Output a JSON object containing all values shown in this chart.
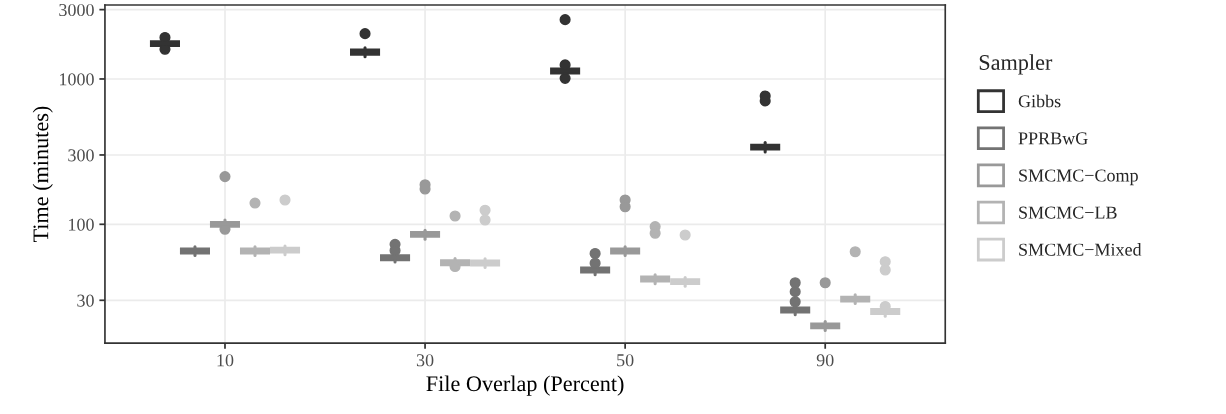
{
  "chart_data": {
    "type": "box",
    "xlabel": "File Overlap (Percent)",
    "ylabel": "Time (minutes)",
    "legend_title": "Sampler",
    "categories": [
      "10",
      "30",
      "50",
      "90"
    ],
    "log": "y",
    "ylim": [
      15.2,
      3230
    ],
    "yticks": [
      30,
      100,
      300,
      1000,
      3000
    ],
    "grid": true,
    "legend": "right",
    "series": [
      {
        "name": "Gibbs",
        "color": "#333333",
        "boxes": [
          {
            "low": 1630,
            "q1": 1700,
            "median": 1750,
            "q3": 1800,
            "high": 1870,
            "outliers": [
              1930,
              1600
            ]
          },
          {
            "low": 1420,
            "q1": 1480,
            "median": 1530,
            "q3": 1580,
            "high": 1640,
            "outliers": [
              2050
            ]
          },
          {
            "low": 1060,
            "q1": 1100,
            "median": 1135,
            "q3": 1170,
            "high": 1210,
            "outliers": [
              1250,
              1010,
              2560
            ]
          },
          {
            "low": 315,
            "q1": 330,
            "median": 340,
            "q3": 350,
            "high": 365,
            "outliers": [
              764,
              706
            ]
          }
        ]
      },
      {
        "name": "PPRBwG",
        "color": "#737373",
        "boxes": [
          {
            "low": 61,
            "q1": 63.5,
            "median": 65.5,
            "q3": 67.5,
            "high": 70
          },
          {
            "low": 55,
            "q1": 57,
            "median": 58.9,
            "q3": 60.7,
            "high": 63,
            "outliers": [
              72.8,
              66
            ]
          },
          {
            "low": 45,
            "q1": 47,
            "median": 48.5,
            "q3": 50,
            "high": 52,
            "outliers": [
              63,
              54
            ]
          },
          {
            "low": 23.9,
            "q1": 24.9,
            "median": 25.7,
            "q3": 26.5,
            "high": 27.5,
            "outliers": [
              39.6,
              29.3,
              34.4
            ]
          }
        ]
      },
      {
        "name": "SMCMC−Comp",
        "color": "#999999",
        "boxes": [
          {
            "low": 93,
            "q1": 97,
            "median": 100,
            "q3": 103,
            "high": 107,
            "outliers": [
              213,
              92.5
            ]
          },
          {
            "low": 79,
            "q1": 82.7,
            "median": 85.3,
            "q3": 87.9,
            "high": 91,
            "outliers": [
              187,
              175
            ]
          },
          {
            "low": 61,
            "q1": 63.5,
            "median": 65.5,
            "q3": 67.5,
            "high": 70,
            "outliers": [
              147,
              132
            ]
          },
          {
            "low": 18.6,
            "q1": 19.4,
            "median": 20,
            "q3": 20.6,
            "high": 21.4,
            "outliers": [
              39.6
            ]
          }
        ]
      },
      {
        "name": "SMCMC−LB",
        "color": "#b3b3b3",
        "boxes": [
          {
            "low": 61,
            "q1": 63.5,
            "median": 65.5,
            "q3": 67.5,
            "high": 70,
            "outliers": [
              140
            ]
          },
          {
            "low": 50.6,
            "q1": 52.8,
            "median": 54.4,
            "q3": 56,
            "high": 58.2,
            "outliers": [
              51.2,
              114
            ]
          },
          {
            "low": 39,
            "q1": 40.7,
            "median": 42,
            "q3": 43.3,
            "high": 45,
            "outliers": [
              96.4,
              86.8
            ]
          },
          {
            "low": 28.5,
            "q1": 29.7,
            "median": 30.6,
            "q3": 31.5,
            "high": 32.7,
            "outliers": [
              64.7
            ]
          }
        ]
      },
      {
        "name": "SMCMC−Mixed",
        "color": "#cccccc",
        "boxes": [
          {
            "low": 61.8,
            "q1": 64.5,
            "median": 66.5,
            "q3": 68.5,
            "high": 71,
            "outliers": [
              147
            ]
          },
          {
            "low": 50.4,
            "q1": 52.6,
            "median": 54.2,
            "q3": 55.8,
            "high": 58,
            "outliers": [
              125,
              107
            ]
          },
          {
            "low": 37.5,
            "q1": 39.1,
            "median": 40.3,
            "q3": 41.5,
            "high": 43.1,
            "outliers": [
              84.4
            ]
          },
          {
            "low": 23.3,
            "q1": 24.3,
            "median": 25.1,
            "q3": 25.9,
            "high": 26.9,
            "outliers": [
              27.2,
              55.3,
              48.5
            ]
          }
        ]
      }
    ]
  }
}
